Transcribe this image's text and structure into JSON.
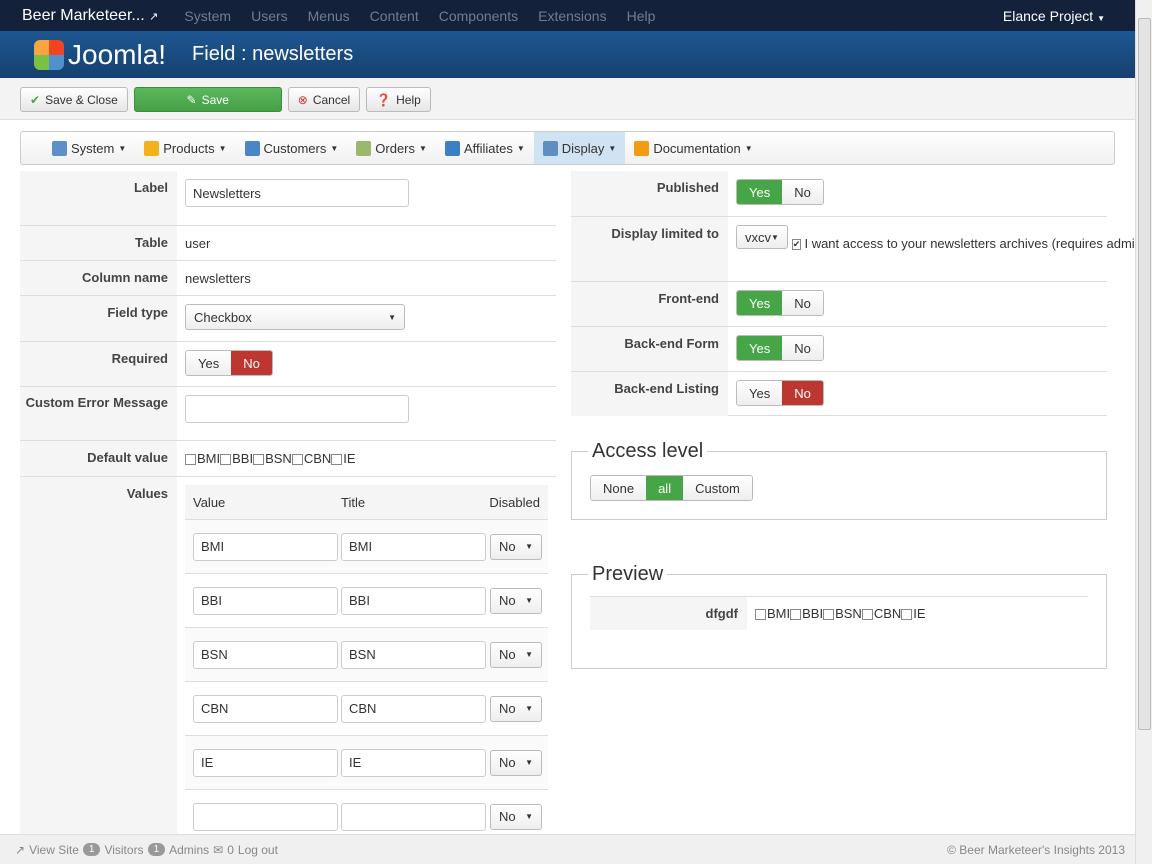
{
  "topnav": {
    "brand": "Beer Marketeer...",
    "menus": [
      "System",
      "Users",
      "Menus",
      "Content",
      "Components",
      "Extensions",
      "Help"
    ],
    "user": "Elance Project"
  },
  "header": {
    "logo": "Joomla!",
    "title": "Field : newsletters"
  },
  "toolbar": {
    "save_close": "Save & Close",
    "save": "Save",
    "cancel": "Cancel",
    "help": "Help"
  },
  "submenu": [
    {
      "label": "System",
      "color": "#5d8fc8"
    },
    {
      "label": "Products",
      "color": "#f3b21b"
    },
    {
      "label": "Customers",
      "color": "#4a86c5"
    },
    {
      "label": "Orders",
      "color": "#9bb86e"
    },
    {
      "label": "Affiliates",
      "color": "#3b7fc4"
    },
    {
      "label": "Display",
      "color": "#5f8fbf",
      "active": true
    },
    {
      "label": "Documentation",
      "color": "#f39c12"
    }
  ],
  "form": {
    "label": {
      "label": "Label",
      "value": "Newsletters"
    },
    "table": {
      "label": "Table",
      "value": "user"
    },
    "column": {
      "label": "Column name",
      "value": "newsletters"
    },
    "fieldtype": {
      "label": "Field type",
      "value": "Checkbox"
    },
    "required": {
      "label": "Required",
      "yes": "Yes",
      "no": "No",
      "selected": "No"
    },
    "custom_error": {
      "label": "Custom Error Message",
      "value": ""
    },
    "default_value": {
      "label": "Default value",
      "options": [
        "BMI",
        "BBI",
        "BSN",
        "CBN",
        "IE"
      ]
    },
    "values": {
      "label": "Values",
      "headers": [
        "Value",
        "Title",
        "Disabled"
      ],
      "rows": [
        {
          "value": "BMI",
          "title": "BMI",
          "disabled": "No"
        },
        {
          "value": "BBI",
          "title": "BBI",
          "disabled": "No"
        },
        {
          "value": "BSN",
          "title": "BSN",
          "disabled": "No"
        },
        {
          "value": "CBN",
          "title": "CBN",
          "disabled": "No"
        },
        {
          "value": "IE",
          "title": "IE",
          "disabled": "No"
        },
        {
          "value": "",
          "title": "",
          "disabled": "No"
        }
      ]
    }
  },
  "right": {
    "published": {
      "label": "Published",
      "selected": "Yes"
    },
    "display_limited": {
      "label": "Display limited to",
      "value": "vxcv",
      "checkbox_text": "I want access to your newsletters archives (requires admin approval)"
    },
    "frontend": {
      "label": "Front-end",
      "selected": "Yes"
    },
    "backend_form": {
      "label": "Back-end Form",
      "selected": "Yes"
    },
    "backend_listing": {
      "label": "Back-end Listing",
      "selected": "No"
    },
    "yes": "Yes",
    "no": "No",
    "access": {
      "legend": "Access level",
      "options": [
        "None",
        "all",
        "Custom"
      ],
      "selected": "all"
    },
    "preview": {
      "legend": "Preview",
      "label": "dfgdf",
      "options": [
        "BMI",
        "BBI",
        "BSN",
        "CBN",
        "IE"
      ]
    }
  },
  "footer": {
    "view_site": "View Site",
    "visitors_count": "1",
    "visitors": "Visitors",
    "admins_count": "1",
    "admins": "Admins",
    "messages_count": "0",
    "logout": "Log out",
    "copyright": "© Beer Marketeer's Insights 2013"
  }
}
